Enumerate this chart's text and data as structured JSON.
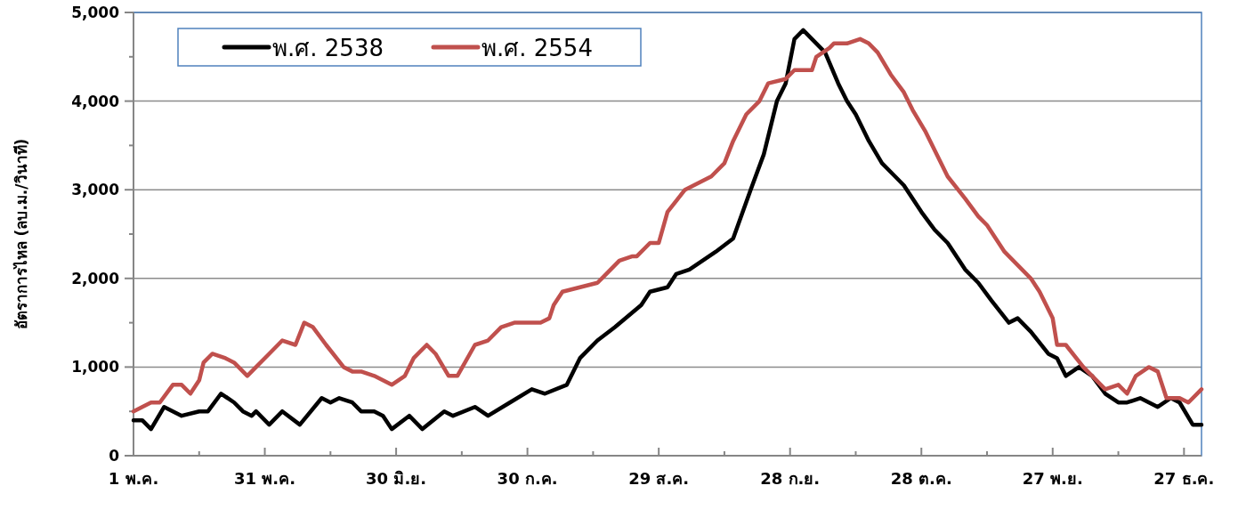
{
  "chart_data": {
    "type": "line",
    "ylabel": "อัตราการไหล (ลบ.ม./วินาที)",
    "xlim": [
      "--05-01",
      "--12-31"
    ],
    "ylim": [
      0,
      5000
    ],
    "xticks": [
      {
        "value": "--05-01",
        "label": "1 พ.ค."
      },
      {
        "value": "--05-16",
        "label": null
      },
      {
        "value": "--05-31",
        "label": "31 พ.ค."
      },
      {
        "value": "--06-15",
        "label": null
      },
      {
        "value": "--06-30",
        "label": "30 มิ.ย."
      },
      {
        "value": "--07-15",
        "label": null
      },
      {
        "value": "--07-30",
        "label": "30 ก.ค."
      },
      {
        "value": "--08-14",
        "label": null
      },
      {
        "value": "--08-29",
        "label": "29 ส.ค."
      },
      {
        "value": "--09-13",
        "label": null
      },
      {
        "value": "--09-28",
        "label": "28 ก.ย."
      },
      {
        "value": "--10-13",
        "label": null
      },
      {
        "value": "--10-28",
        "label": "28 ต.ค."
      },
      {
        "value": "--11-12",
        "label": null
      },
      {
        "value": "--11-27",
        "label": "27 พ.ย."
      },
      {
        "value": "--12-12",
        "label": null
      },
      {
        "value": "--12-27",
        "label": "27 ธ.ค."
      }
    ],
    "yticks": [
      {
        "value": 0,
        "label": "0"
      },
      {
        "value": 500,
        "label": null
      },
      {
        "value": 1000,
        "label": "1,000"
      },
      {
        "value": 1500,
        "label": null
      },
      {
        "value": 2000,
        "label": "2,000"
      },
      {
        "value": 2500,
        "label": null
      },
      {
        "value": 3000,
        "label": "3,000"
      },
      {
        "value": 3500,
        "label": null
      },
      {
        "value": 4000,
        "label": "4,000"
      },
      {
        "value": 4500,
        "label": null
      },
      {
        "value": 5000,
        "label": "5,000"
      }
    ],
    "grid": "y",
    "legend": "top left",
    "series": [
      {
        "name": "พ.ศ. 2538",
        "color": "#000000",
        "x": [
          "--05-01",
          "--05-03",
          "--05-05",
          "--05-08",
          "--05-12",
          "--05-16",
          "--05-18",
          "--05-21",
          "--05-24",
          "--05-26",
          "--05-28",
          "--05-29",
          "--06-01",
          "--06-04",
          "--06-08",
          "--06-13",
          "--06-15",
          "--06-17",
          "--06-20",
          "--06-22",
          "--06-25",
          "--06-27",
          "--06-29",
          "--07-03",
          "--07-06",
          "--07-11",
          "--07-13",
          "--07-18",
          "--07-21",
          "--07-26",
          "--07-31",
          "--08-03",
          "--08-08",
          "--08-11",
          "--08-15",
          "--08-19",
          "--08-25",
          "--08-27",
          "--08-31",
          "--09-02",
          "--09-05",
          "--09-08",
          "--09-11",
          "--09-15",
          "--09-19",
          "--09-22",
          "--09-25",
          "--09-27",
          "--09-29",
          "--10-01",
          "--10-06",
          "--10-09",
          "--10-11",
          "--10-13",
          "--10-16",
          "--10-19",
          "--10-22",
          "--10-24",
          "--10-28",
          "--10-31",
          "--11-03",
          "--11-07",
          "--11-10",
          "--11-13",
          "--11-17",
          "--11-19",
          "--11-22",
          "--11-26",
          "--11-28",
          "--11-30",
          "--12-03",
          "--12-06",
          "--12-09",
          "--12-12",
          "--12-14",
          "--12-17",
          "--12-21",
          "--12-24",
          "--12-26",
          "--12-29",
          "--12-31"
        ],
        "values": [
          400,
          400,
          300,
          550,
          450,
          500,
          500,
          700,
          600,
          500,
          450,
          500,
          350,
          500,
          350,
          650,
          600,
          650,
          600,
          500,
          500,
          450,
          300,
          450,
          300,
          500,
          450,
          550,
          450,
          600,
          750,
          700,
          800,
          1100,
          1300,
          1450,
          1700,
          1850,
          1900,
          2050,
          2100,
          2200,
          2300,
          2450,
          3000,
          3400,
          4000,
          4200,
          4700,
          4800,
          4550,
          4200,
          4000,
          3850,
          3550,
          3300,
          3150,
          3050,
          2750,
          2550,
          2400,
          2100,
          1950,
          1750,
          1500,
          1550,
          1400,
          1150,
          1100,
          900,
          1000,
          900,
          700,
          600,
          600,
          650,
          550,
          650,
          600,
          350,
          350
        ]
      },
      {
        "name": "พ.ศ. 2554",
        "color": "#c0504d",
        "x": [
          "--05-01",
          "--05-03",
          "--05-05",
          "--05-07",
          "--05-10",
          "--05-12",
          "--05-14",
          "--05-16",
          "--05-17",
          "--05-19",
          "--05-22",
          "--05-24",
          "--05-27",
          "--05-29",
          "--06-01",
          "--06-04",
          "--06-07",
          "--06-09",
          "--06-11",
          "--06-14",
          "--06-18",
          "--06-20",
          "--06-22",
          "--06-25",
          "--06-29",
          "--07-02",
          "--07-04",
          "--07-07",
          "--07-09",
          "--07-12",
          "--07-14",
          "--07-18",
          "--07-21",
          "--07-24",
          "--07-27",
          "--07-31",
          "--08-02",
          "--08-04",
          "--08-05",
          "--08-07",
          "--08-11",
          "--08-15",
          "--08-17",
          "--08-20",
          "--08-23",
          "--08-24",
          "--08-27",
          "--08-29",
          "--08-31",
          "--09-04",
          "--09-08",
          "--09-10",
          "--09-13",
          "--09-15",
          "--09-18",
          "--09-21",
          "--09-23",
          "--09-27",
          "--09-29",
          "--10-03",
          "--10-04",
          "--10-07",
          "--10-08",
          "--10-11",
          "--10-14",
          "--10-16",
          "--10-18",
          "--10-21",
          "--10-24",
          "--10-26",
          "--10-29",
          "--11-03",
          "--11-07",
          "--11-10",
          "--11-12",
          "--11-16",
          "--11-22",
          "--11-24",
          "--11-27",
          "--11-28",
          "--11-30",
          "--12-04",
          "--12-06",
          "--12-09",
          "--12-12",
          "--12-14",
          "--12-16",
          "--12-19",
          "--12-21",
          "--12-23",
          "--12-26",
          "--12-28",
          "--12-31"
        ],
        "values": [
          500,
          550,
          600,
          600,
          800,
          800,
          700,
          850,
          1050,
          1150,
          1100,
          1050,
          900,
          1000,
          1150,
          1300,
          1250,
          1500,
          1450,
          1250,
          1000,
          950,
          950,
          900,
          800,
          900,
          1100,
          1250,
          1150,
          900,
          900,
          1250,
          1300,
          1450,
          1500,
          1500,
          1500,
          1550,
          1700,
          1850,
          1900,
          1950,
          2050,
          2200,
          2250,
          2250,
          2400,
          2400,
          2750,
          3000,
          3100,
          3150,
          3300,
          3550,
          3850,
          4000,
          4200,
          4250,
          4350,
          4350,
          4500,
          4600,
          4650,
          4650,
          4700,
          4650,
          4550,
          4300,
          4100,
          3900,
          3650,
          3150,
          2900,
          2700,
          2600,
          2300,
          2000,
          1850,
          1550,
          1250,
          1250,
          1000,
          900,
          750,
          800,
          700,
          900,
          1000,
          950,
          650,
          650,
          600,
          750
        ]
      }
    ]
  }
}
